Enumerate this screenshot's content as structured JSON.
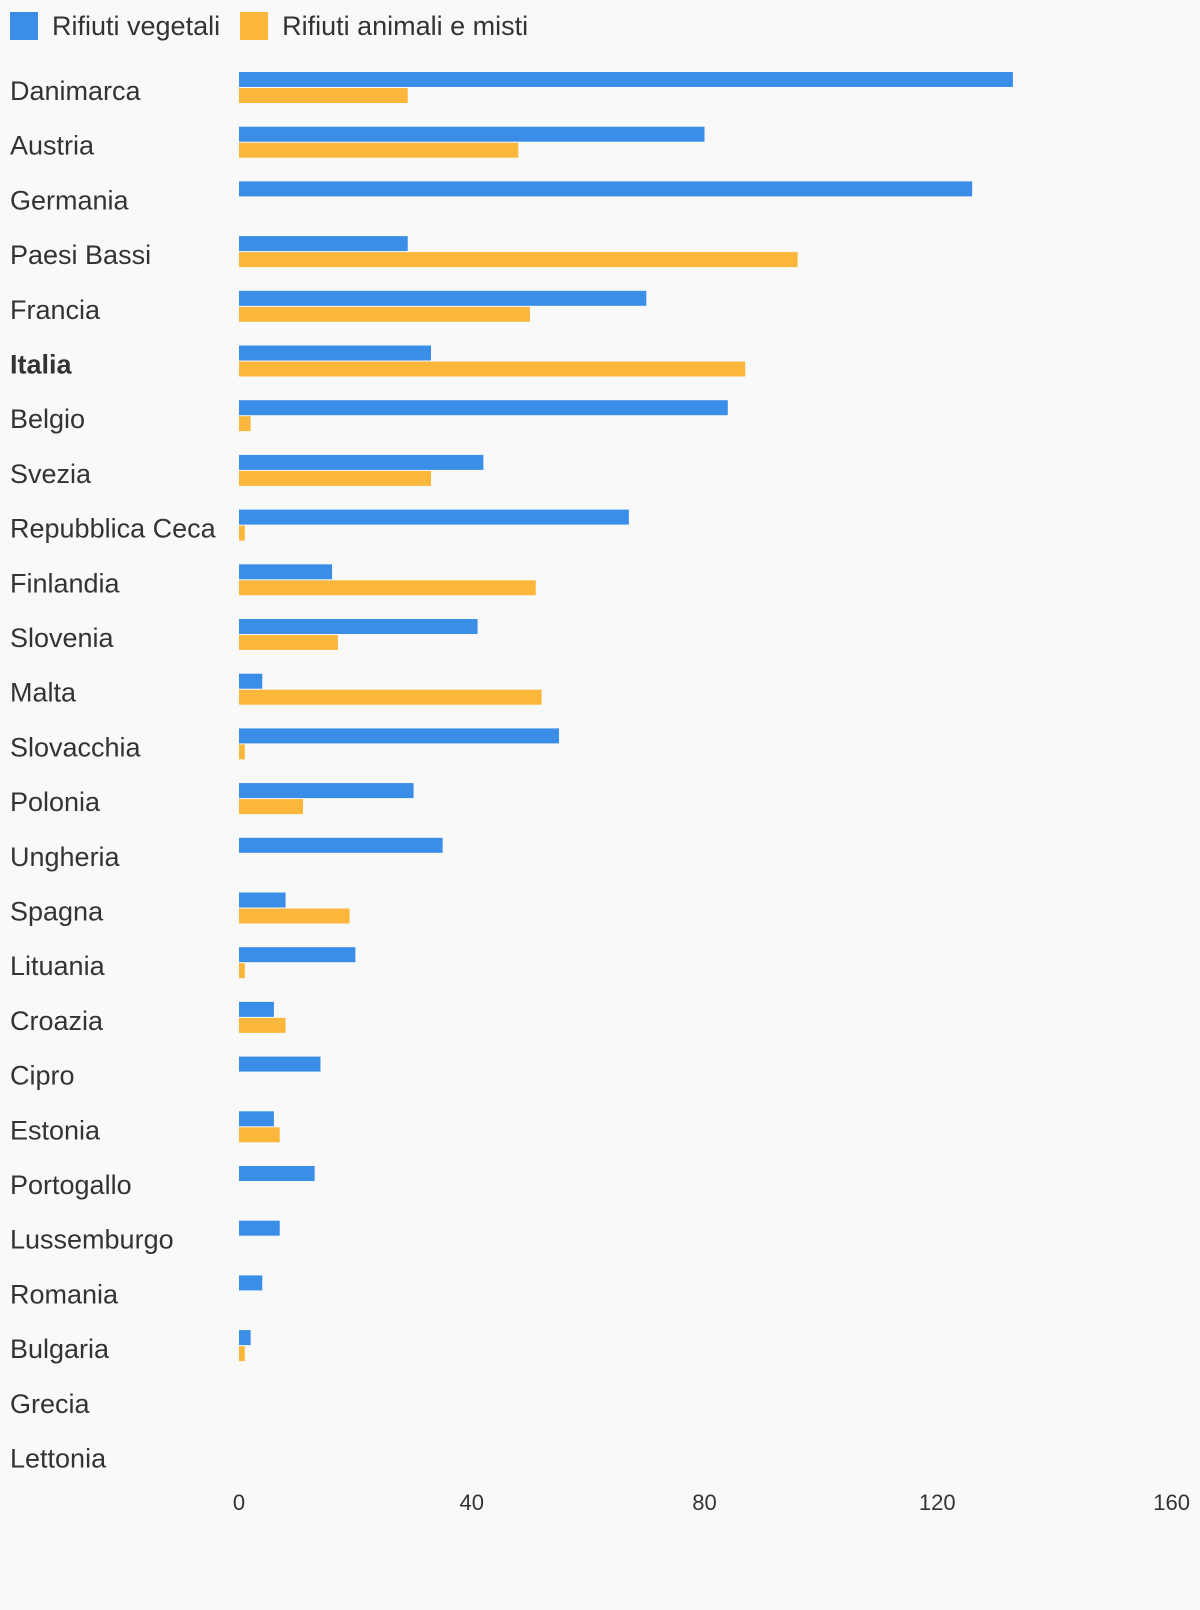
{
  "chart_data": {
    "type": "bar",
    "orientation": "horizontal",
    "categories": [
      "Danimarca",
      "Austria",
      "Germania",
      "Paesi Bassi",
      "Francia",
      "Italia",
      "Belgio",
      "Svezia",
      "Repubblica Ceca",
      "Finlandia",
      "Slovenia",
      "Malta",
      "Slovacchia",
      "Polonia",
      "Ungheria",
      "Spagna",
      "Lituania",
      "Croazia",
      "Cipro",
      "Estonia",
      "Portogallo",
      "Lussemburgo",
      "Romania",
      "Bulgaria",
      "Grecia",
      "Lettonia"
    ],
    "highlighted_category": "Italia",
    "series": [
      {
        "name": "Rifiuti vegetali",
        "color": "#3a8ee8",
        "values": [
          133,
          80,
          126,
          29,
          70,
          33,
          84,
          42,
          67,
          16,
          41,
          4,
          55,
          30,
          35,
          8,
          20,
          6,
          14,
          6,
          13,
          7,
          4,
          2,
          0,
          0
        ]
      },
      {
        "name": "Rifiuti animali e misti",
        "color": "#fbb73b",
        "values": [
          29,
          48,
          0,
          96,
          50,
          87,
          2,
          33,
          1,
          51,
          17,
          52,
          1,
          11,
          0,
          19,
          1,
          8,
          0,
          7,
          0,
          0,
          0,
          1,
          0,
          0
        ]
      }
    ],
    "xlim": [
      0,
      160
    ],
    "xticks": [
      "0",
      "40",
      "80",
      "120",
      "160"
    ],
    "title": "",
    "xlabel": "",
    "ylabel": "",
    "grid": false,
    "legend_position": "top-left"
  }
}
